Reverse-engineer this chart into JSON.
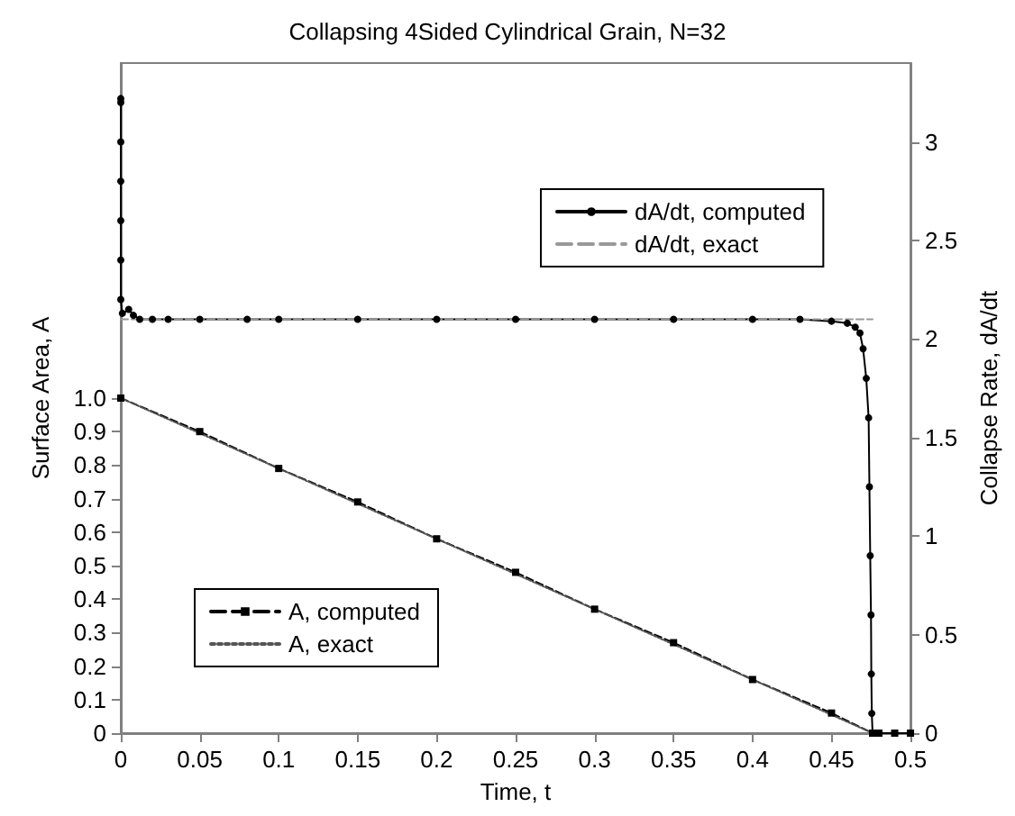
{
  "chart_data": {
    "type": "line",
    "title": "Collapsing 4Sided Cylindrical Grain, N=32",
    "xlabel": "Time, t",
    "ylabel": "Surface Area, A",
    "y2label": "Collapse Rate, dA/dt",
    "series": [
      {
        "name": "dA/dt, computed",
        "color": "#000000",
        "axis": "y2",
        "marker": "circle",
        "line_style": "solid",
        "x": [
          0,
          0,
          0,
          0,
          0,
          0,
          0,
          0.001,
          0.005,
          0.008,
          0.012,
          0.02,
          0.03,
          0.05,
          0.08,
          0.1,
          0.15,
          0.2,
          0.25,
          0.3,
          0.35,
          0.4,
          0.43,
          0.45,
          0.46,
          0.465,
          0.468,
          0.47,
          0.472,
          0.4735,
          0.474,
          0.4745,
          0.475,
          0.4752,
          0.4755,
          0.476,
          0.48,
          0.49,
          0.5
        ],
        "values": [
          3.22,
          3.2,
          3.0,
          2.8,
          2.6,
          2.4,
          2.2,
          2.13,
          2.15,
          2.12,
          2.1,
          2.1,
          2.1,
          2.1,
          2.1,
          2.1,
          2.1,
          2.1,
          2.1,
          2.1,
          2.1,
          2.1,
          2.1,
          2.09,
          2.08,
          2.06,
          2.03,
          1.95,
          1.8,
          1.6,
          1.25,
          0.9,
          0.6,
          0.3,
          0.1,
          0,
          0,
          0,
          0
        ]
      },
      {
        "name": "dA/dt, exact",
        "color": "#999999",
        "axis": "y2",
        "marker": "none",
        "line_style": "dashed",
        "x": [
          0,
          0.476
        ],
        "values": [
          2.1,
          2.1
        ]
      },
      {
        "name": "A, computed",
        "color": "#000000",
        "axis": "y",
        "marker": "square",
        "line_style": "dashed",
        "x": [
          0,
          0.05,
          0.1,
          0.15,
          0.2,
          0.25,
          0.3,
          0.35,
          0.4,
          0.45,
          0.476,
          0.48,
          0.49,
          0.5
        ],
        "values": [
          1,
          0.9,
          0.79,
          0.69,
          0.58,
          0.48,
          0.37,
          0.27,
          0.16,
          0.06,
          0,
          0,
          0,
          0
        ]
      },
      {
        "name": "A, exact",
        "color": "#555555",
        "axis": "y",
        "marker": "none",
        "line_style": "dotted",
        "x": [
          0,
          0.476
        ],
        "values": [
          1,
          0
        ]
      }
    ],
    "xlim": [
      0,
      0.5
    ],
    "xticks": [
      0,
      0.05,
      0.1,
      0.15,
      0.2,
      0.25,
      0.3,
      0.35,
      0.4,
      0.45,
      0.5
    ],
    "ylim": [
      0,
      2
    ],
    "yticks": [
      0,
      0.1,
      0.2,
      0.3,
      0.4,
      0.5,
      0.6,
      0.7,
      0.8,
      0.9,
      {
        "value": 1,
        "label": "1.0"
      }
    ],
    "y2lim": [
      0,
      3.4
    ],
    "y2ticks": [
      0,
      0.5,
      1,
      1.5,
      2,
      2.5,
      3
    ],
    "legend": "center",
    "grid": false
  }
}
